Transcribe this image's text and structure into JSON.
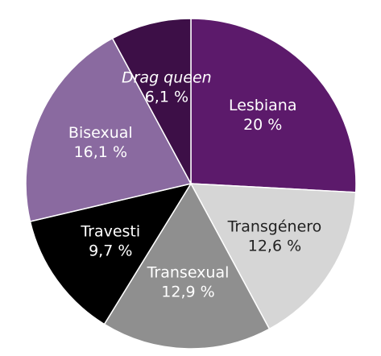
{
  "chart_data": {
    "type": "pie",
    "categories": [
      "Lesbiana",
      "Transgénero",
      "Transexual",
      "Travesti",
      "Bisexual",
      "Drag queen"
    ],
    "values": [
      20,
      12.6,
      12.9,
      9.7,
      16.1,
      6.1
    ],
    "value_labels": [
      "20 %",
      "12,6 %",
      "12,9 %",
      "9,7 %",
      "16,1 %",
      "6,1 %"
    ],
    "colors": [
      "#5c1a6b",
      "#d6d6d6",
      "#8f8f8f",
      "#000000",
      "#8a6aa0",
      "#3d0f47"
    ],
    "italic_categories": [
      "Drag queen"
    ]
  }
}
